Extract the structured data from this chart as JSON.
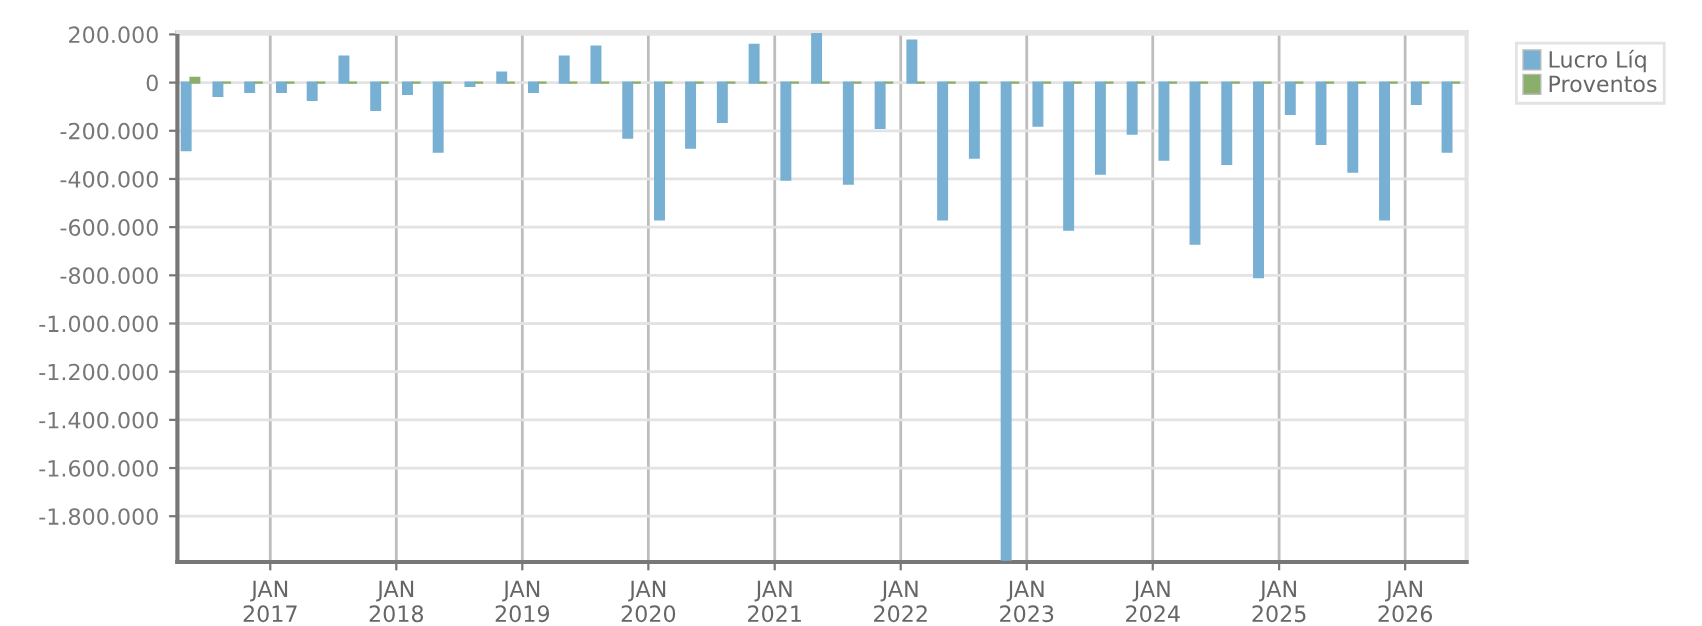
{
  "chart_data": {
    "type": "bar",
    "x": [
      "2016-05-15",
      "2016-08-15",
      "2016-11-15",
      "2017-02-15",
      "2017-05-15",
      "2017-08-15",
      "2017-11-15",
      "2018-02-15",
      "2018-05-15",
      "2018-08-15",
      "2018-11-15",
      "2019-02-15",
      "2019-05-15",
      "2019-08-15",
      "2019-11-15",
      "2020-02-15",
      "2020-05-15",
      "2020-08-15",
      "2020-11-15",
      "2021-02-15",
      "2021-05-15",
      "2021-08-15",
      "2021-11-15",
      "2022-02-15",
      "2022-05-15",
      "2022-08-15",
      "2022-11-15",
      "2023-02-15",
      "2023-05-15",
      "2023-08-15",
      "2023-11-15",
      "2024-02-15",
      "2024-05-15",
      "2024-08-15",
      "2024-11-15",
      "2025-02-15",
      "2025-05-15",
      "2025-08-15",
      "2025-11-15",
      "2026-02-15",
      "2026-05-15"
    ],
    "series": [
      {
        "name": "Lucro Líq",
        "color": "#77b0d3",
        "values": [
          -280000,
          -55000,
          -39000,
          -39000,
          -72000,
          108000,
          -113000,
          -47000,
          -287000,
          -14000,
          41000,
          -39000,
          108000,
          149000,
          -229000,
          -568000,
          -270000,
          -163000,
          157000,
          -403000,
          201000,
          -419000,
          -188000,
          174000,
          -568000,
          -312000,
          -1980000,
          -179000,
          -610000,
          -378000,
          -212000,
          -320000,
          -668000,
          -337000,
          -808000,
          -130000,
          -254000,
          -370000,
          -568000,
          -88000,
          -287000
        ]
      },
      {
        "name": "Proventos",
        "color": "#8aaf6a",
        "values": [
          20000,
          0,
          0,
          0,
          0,
          0,
          0,
          0,
          0,
          0,
          0,
          0,
          0,
          0,
          0,
          0,
          0,
          0,
          0,
          0,
          0,
          0,
          0,
          0,
          0,
          0,
          0,
          0,
          0,
          0,
          0,
          0,
          0,
          0,
          0,
          0,
          0,
          0,
          0,
          0,
          0
        ]
      }
    ],
    "xlim": [
      "2016-04-07",
      "2026-06-28"
    ],
    "xticks": [
      {
        "value": "2017-01-01",
        "label": "JAN\n2017"
      },
      {
        "value": "2018-01-01",
        "label": "JAN\n2018"
      },
      {
        "value": "2019-01-01",
        "label": "JAN\n2019"
      },
      {
        "value": "2020-01-01",
        "label": "JAN\n2020"
      },
      {
        "value": "2021-01-01",
        "label": "JAN\n2021"
      },
      {
        "value": "2022-01-01",
        "label": "JAN\n2022"
      },
      {
        "value": "2023-01-01",
        "label": "JAN\n2023"
      },
      {
        "value": "2024-01-01",
        "label": "JAN\n2024"
      },
      {
        "value": "2025-01-01",
        "label": "JAN\n2025"
      },
      {
        "value": "2026-01-01",
        "label": "JAN\n2026"
      }
    ],
    "ylim": [
      -1990000,
      210000
    ],
    "yticks": [
      {
        "value": 200000,
        "label": "200.000"
      },
      {
        "value": 0,
        "label": "0"
      },
      {
        "value": -200000,
        "label": "-200.000"
      },
      {
        "value": -400000,
        "label": "-400.000"
      },
      {
        "value": -600000,
        "label": "-600.000"
      },
      {
        "value": -800000,
        "label": "-800.000"
      },
      {
        "value": -1000000,
        "label": "-1.000.000"
      },
      {
        "value": -1200000,
        "label": "-1.200.000"
      },
      {
        "value": -1400000,
        "label": "-1.400.000"
      },
      {
        "value": -1600000,
        "label": "-1.600.000"
      },
      {
        "value": -1800000,
        "label": "-1.800.000"
      }
    ],
    "grid": true,
    "legend": "top right"
  }
}
